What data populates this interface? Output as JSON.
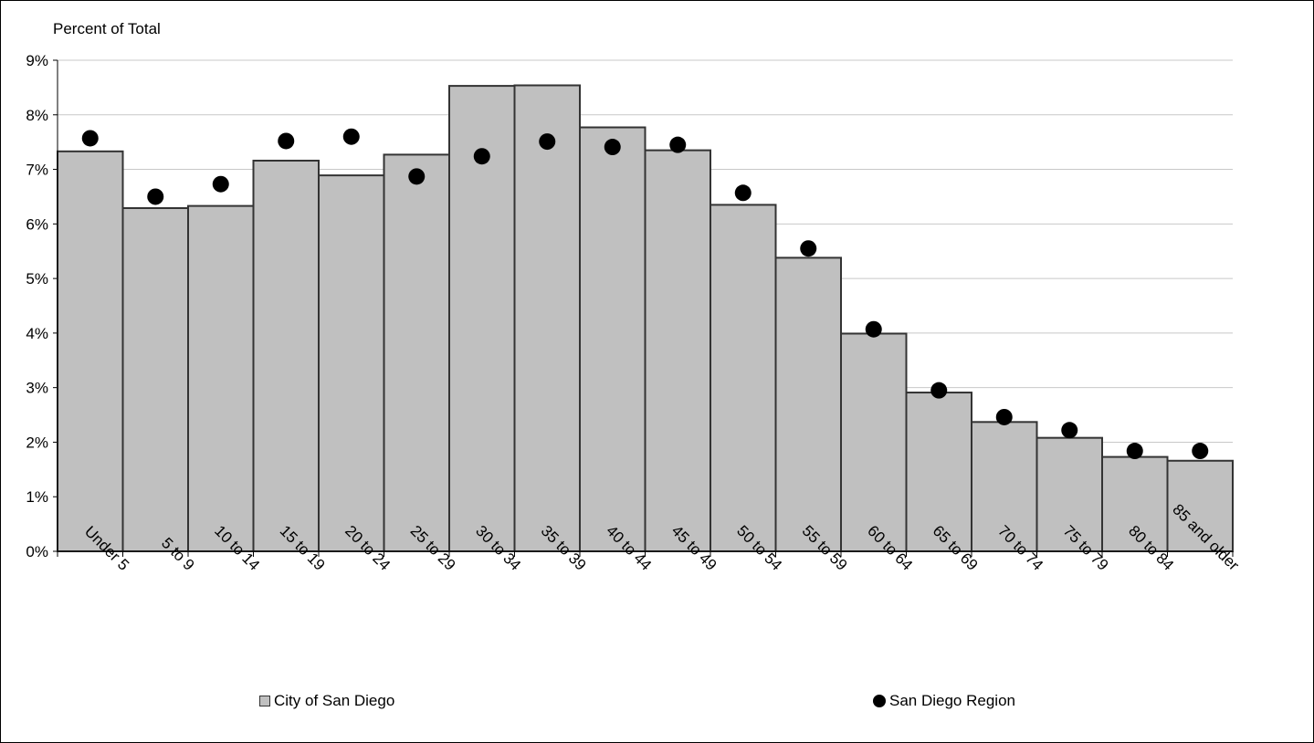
{
  "chart_data": {
    "type": "bar",
    "ylabel": "Percent of Total",
    "ylim": [
      0,
      9
    ],
    "yticks": [
      "0%",
      "1%",
      "2%",
      "3%",
      "4%",
      "5%",
      "6%",
      "7%",
      "8%",
      "9%"
    ],
    "grid": true,
    "categories": [
      "Under 5",
      "5 to 9",
      "10 to 14",
      "15 to 19",
      "20 to 24",
      "25 to 29",
      "30 to 34",
      "35 to 39",
      "40 to 44",
      "45 to 49",
      "50 to 54",
      "55 to 59",
      "60 to 64",
      "65 to 69",
      "70 to 74",
      "75 to 79",
      "80 to 84",
      "85 and older"
    ],
    "series": [
      {
        "name": "City of San Diego",
        "kind": "bar",
        "color": "#c0c0c0",
        "values": [
          7.33,
          6.29,
          6.33,
          7.16,
          6.89,
          7.27,
          8.53,
          8.54,
          7.77,
          7.35,
          6.35,
          5.38,
          3.99,
          2.91,
          2.37,
          2.08,
          1.73,
          1.66
        ]
      },
      {
        "name": "San Diego Region",
        "kind": "marker",
        "color": "#000000",
        "values": [
          7.57,
          6.5,
          6.73,
          7.52,
          7.6,
          6.87,
          7.24,
          7.51,
          7.41,
          7.45,
          6.57,
          5.55,
          4.07,
          2.95,
          2.46,
          2.22,
          1.84,
          1.84
        ]
      }
    ],
    "legend_position": "bottom"
  }
}
